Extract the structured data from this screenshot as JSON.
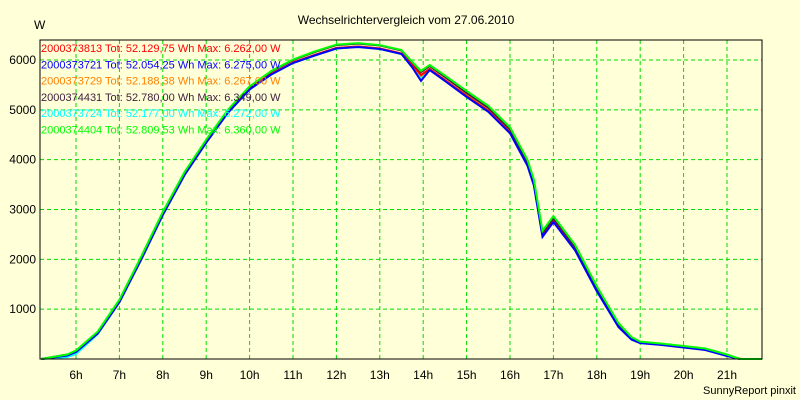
{
  "chart_data": {
    "type": "line",
    "title": "Wechselrichtervergleich vom 27.06.2010",
    "ylabel": "W",
    "xlabel": "",
    "footer": "SunnyReport pinxit",
    "xlim": [
      5.17,
      21.8
    ],
    "ylim": [
      0,
      6400
    ],
    "grid": true,
    "grid_color": "#00dd00",
    "x_ticks": [
      6,
      7,
      8,
      9,
      10,
      11,
      12,
      13,
      14,
      15,
      16,
      17,
      18,
      19,
      20,
      21
    ],
    "x_tick_labels": [
      "6h",
      "7h",
      "8h",
      "9h",
      "10h",
      "11h",
      "12h",
      "13h",
      "14h",
      "15h",
      "16h",
      "17h",
      "18h",
      "19h",
      "20h",
      "21h"
    ],
    "y_ticks": [
      1000,
      2000,
      3000,
      4000,
      5000,
      6000
    ],
    "y_tick_labels": [
      "1000",
      "2000",
      "3000",
      "4000",
      "5000",
      "6000"
    ],
    "legend_position": "top-left",
    "x": [
      5.2,
      5.8,
      6.0,
      6.5,
      7.0,
      7.5,
      8.0,
      8.5,
      9.0,
      9.5,
      10.0,
      10.5,
      11.0,
      11.5,
      12.0,
      12.5,
      13.0,
      13.5,
      13.75,
      13.95,
      14.15,
      14.5,
      15.0,
      15.5,
      16.0,
      16.4,
      16.55,
      16.75,
      17.0,
      17.5,
      18.0,
      18.5,
      18.8,
      19.0,
      19.5,
      20.0,
      20.5,
      21.0,
      21.3,
      21.8
    ],
    "series": [
      {
        "name": "2000373813",
        "legend": "2000373813 Tot: 52.129,75 Wh Max: 6.262,00 W",
        "color": "#ff0000",
        "values": [
          0,
          80,
          150,
          520,
          1150,
          2000,
          2900,
          3700,
          4350,
          4950,
          5420,
          5720,
          5950,
          6100,
          6240,
          6270,
          6230,
          6130,
          5900,
          5700,
          5820,
          5600,
          5280,
          4980,
          4550,
          3900,
          3500,
          2480,
          2780,
          2200,
          1380,
          650,
          400,
          330,
          290,
          240,
          190,
          70,
          0,
          0
        ]
      },
      {
        "name": "2000373721",
        "legend": "2000373721 Tot: 52.054,25 Wh Max: 6.275,00 W",
        "color": "#0000ff",
        "values": [
          0,
          70,
          140,
          510,
          1140,
          1990,
          2890,
          3690,
          4340,
          4940,
          5410,
          5710,
          5940,
          6090,
          6230,
          6260,
          6220,
          6120,
          5850,
          5580,
          5800,
          5580,
          5260,
          4960,
          4530,
          3880,
          3480,
          2450,
          2750,
          2180,
          1360,
          640,
          390,
          320,
          280,
          230,
          180,
          60,
          0,
          0
        ]
      },
      {
        "name": "2000373729",
        "legend": "2000373729 Tot: 52.188,38 Wh Max: 6.267,00 W",
        "color": "#ff8000",
        "values": [
          0,
          75,
          145,
          515,
          1150,
          2000,
          2900,
          3700,
          4350,
          4950,
          5420,
          5720,
          5950,
          6100,
          6240,
          6270,
          6230,
          6130,
          5880,
          5680,
          5820,
          5600,
          5290,
          4990,
          4560,
          3910,
          3510,
          2490,
          2790,
          2210,
          1390,
          660,
          400,
          330,
          290,
          240,
          190,
          70,
          0,
          0
        ]
      },
      {
        "name": "2000374431",
        "legend": "2000374431 Tot: 52.780,00 Wh Max: 6.349,00 W",
        "color": "#402040",
        "values": [
          0,
          90,
          160,
          540,
          1180,
          2040,
          2940,
          3740,
          4390,
          4990,
          5460,
          5770,
          6000,
          6160,
          6300,
          6330,
          6290,
          6190,
          5950,
          5760,
          5880,
          5660,
          5340,
          5040,
          4610,
          3960,
          3560,
          2530,
          2830,
          2250,
          1420,
          690,
          420,
          340,
          300,
          250,
          200,
          80,
          0,
          0
        ]
      },
      {
        "name": "2000373724",
        "legend": "2000373724 Tot: 52.177,00 Wh Max: 6.272,00 W",
        "color": "#00ffff",
        "values": [
          0,
          40,
          100,
          500,
          1140,
          1990,
          2890,
          3690,
          4340,
          4940,
          5410,
          5710,
          5940,
          6090,
          6230,
          6260,
          6220,
          6120,
          5870,
          5650,
          5810,
          5590,
          5280,
          4980,
          4550,
          3900,
          3500,
          2480,
          2780,
          2200,
          1380,
          660,
          400,
          330,
          290,
          240,
          190,
          70,
          0,
          0
        ]
      },
      {
        "name": "2000374404",
        "legend": "2000374404 Tot: 52.809,53 Wh Max: 6.360,00 W",
        "color": "#00ff00",
        "values": [
          0,
          90,
          170,
          550,
          1190,
          2050,
          2950,
          3750,
          4400,
          5000,
          5470,
          5780,
          6010,
          6170,
          6310,
          6340,
          6300,
          6200,
          5960,
          5780,
          5900,
          5690,
          5380,
          5080,
          4650,
          4000,
          3600,
          2570,
          2870,
          2290,
          1460,
          720,
          440,
          350,
          310,
          260,
          210,
          90,
          0,
          0
        ]
      }
    ]
  }
}
